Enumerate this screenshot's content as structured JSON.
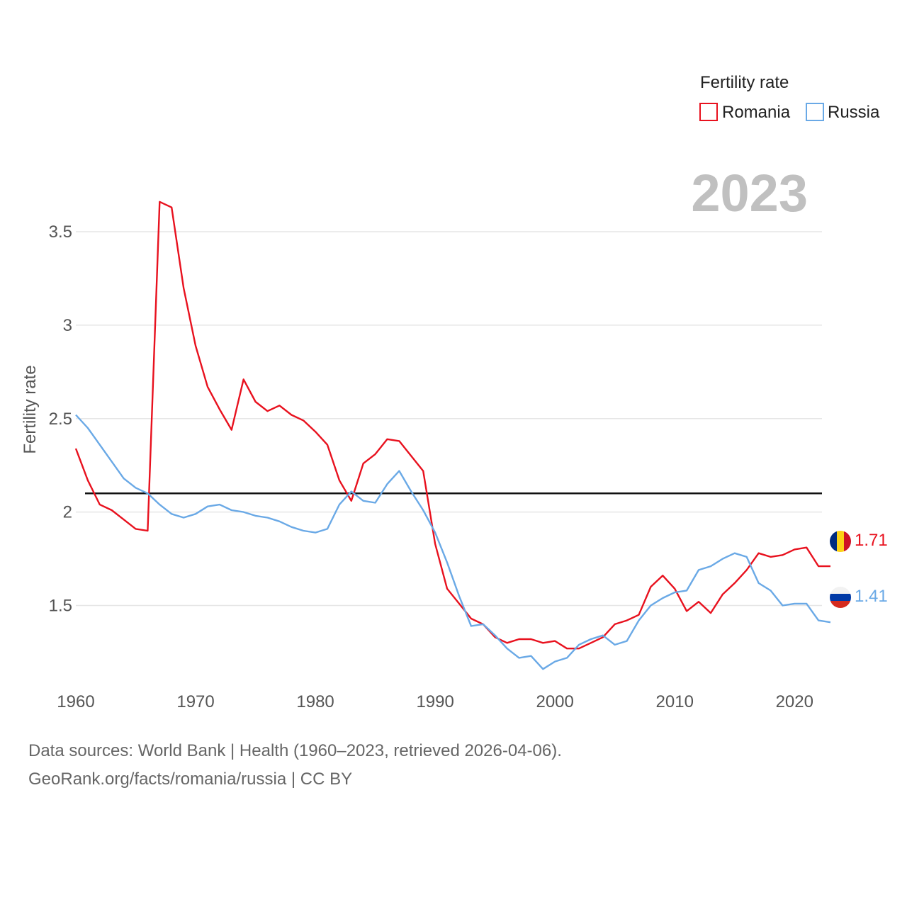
{
  "chart_data": {
    "type": "line",
    "ylabel": "Fertility rate",
    "xlabel": "",
    "legend_title": "Fertility rate",
    "legend_position": "top-right",
    "current_year_label": "2023",
    "xlim": [
      1960,
      2023
    ],
    "ylim": [
      1.1,
      3.83
    ],
    "y_ticks": [
      1.5,
      2,
      2.5,
      3,
      3.5
    ],
    "y_tick_labels": [
      "1.5",
      "2",
      "2.5",
      "3",
      "3.5"
    ],
    "x_ticks": [
      1960,
      1970,
      1980,
      1990,
      2000,
      2010,
      2020
    ],
    "x_tick_labels": [
      "1960",
      "1970",
      "1980",
      "1990",
      "2000",
      "2010",
      "2020"
    ],
    "reference_line": {
      "y": 2.1,
      "color": "#111111"
    },
    "x": [
      1960,
      1961,
      1962,
      1963,
      1964,
      1965,
      1966,
      1967,
      1968,
      1969,
      1970,
      1971,
      1972,
      1973,
      1974,
      1975,
      1976,
      1977,
      1978,
      1979,
      1980,
      1981,
      1982,
      1983,
      1984,
      1985,
      1986,
      1987,
      1988,
      1989,
      1990,
      1991,
      1992,
      1993,
      1994,
      1995,
      1996,
      1997,
      1998,
      1999,
      2000,
      2001,
      2002,
      2003,
      2004,
      2005,
      2006,
      2007,
      2008,
      2009,
      2010,
      2011,
      2012,
      2013,
      2014,
      2015,
      2016,
      2017,
      2018,
      2019,
      2020,
      2021,
      2022,
      2023
    ],
    "series": [
      {
        "name": "Romania",
        "color": "#e8111e",
        "end_label": "1.71",
        "values": [
          2.34,
          2.17,
          2.04,
          2.01,
          1.96,
          1.91,
          1.9,
          3.66,
          3.63,
          3.2,
          2.89,
          2.67,
          2.55,
          2.44,
          2.71,
          2.59,
          2.54,
          2.57,
          2.52,
          2.49,
          2.43,
          2.36,
          2.17,
          2.06,
          2.26,
          2.31,
          2.39,
          2.38,
          2.3,
          2.22,
          1.83,
          1.59,
          1.51,
          1.43,
          1.4,
          1.33,
          1.3,
          1.32,
          1.32,
          1.3,
          1.31,
          1.27,
          1.27,
          1.3,
          1.33,
          1.4,
          1.42,
          1.45,
          1.6,
          1.66,
          1.59,
          1.47,
          1.52,
          1.46,
          1.56,
          1.62,
          1.69,
          1.78,
          1.76,
          1.77,
          1.8,
          1.81,
          1.71,
          1.71
        ]
      },
      {
        "name": "Russia",
        "color": "#6aa9e6",
        "end_label": "1.41",
        "values": [
          2.52,
          2.45,
          2.36,
          2.27,
          2.18,
          2.13,
          2.1,
          2.04,
          1.99,
          1.97,
          1.99,
          2.03,
          2.04,
          2.01,
          2.0,
          1.98,
          1.97,
          1.95,
          1.92,
          1.9,
          1.89,
          1.91,
          2.04,
          2.11,
          2.06,
          2.05,
          2.15,
          2.22,
          2.11,
          2.01,
          1.89,
          1.73,
          1.55,
          1.39,
          1.4,
          1.34,
          1.27,
          1.22,
          1.23,
          1.16,
          1.2,
          1.22,
          1.29,
          1.32,
          1.34,
          1.29,
          1.31,
          1.42,
          1.5,
          1.54,
          1.57,
          1.58,
          1.69,
          1.71,
          1.75,
          1.78,
          1.76,
          1.62,
          1.58,
          1.5,
          1.51,
          1.51,
          1.42,
          1.41
        ]
      }
    ]
  },
  "footer": {
    "line1": "Data sources: World Bank | Health (1960–2023, retrieved 2026-04-06).",
    "line2": "GeoRank.org/facts/romania/russia | CC BY"
  }
}
